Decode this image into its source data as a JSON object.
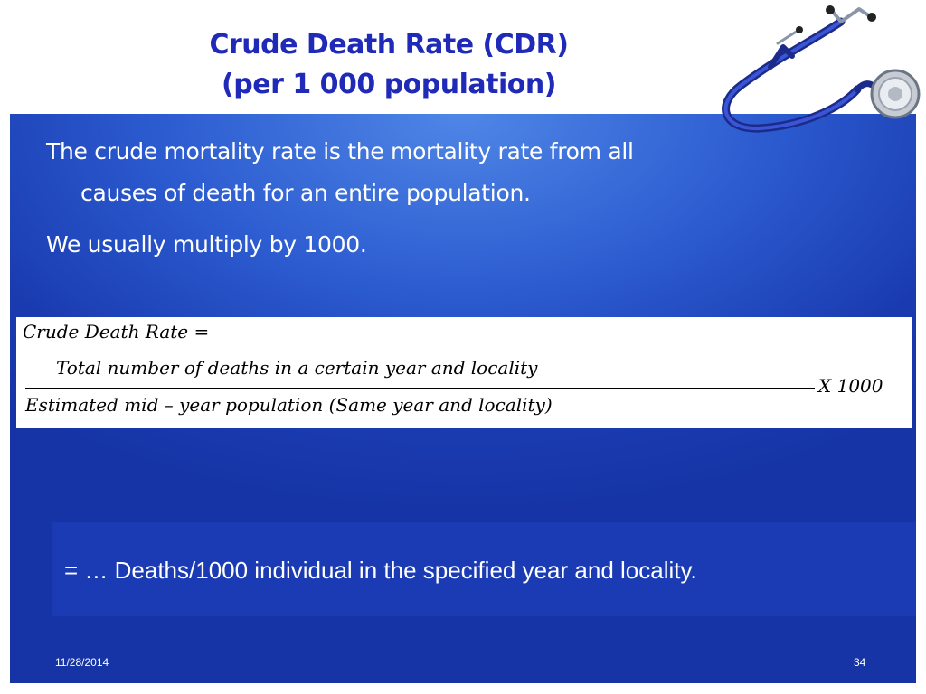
{
  "slide": {
    "title_line1": "Crude Death Rate (CDR)",
    "title_line2": "(per 1 000 population)",
    "bullets": {
      "b1_line1": "The crude mortality rate is the mortality rate from all",
      "b1_line2": "causes of death for an entire population.",
      "b2": "We usually multiply by 1000."
    },
    "formula": {
      "lhs": "Crude  Death  Rate =",
      "numerator": "Total  number  of  deaths  in  a  certain  year  and  locality",
      "denominator": "Estimated  mid – year  population  (Same  year  and  locality)",
      "multiplier": "X  1000"
    },
    "result": "= … Deaths/1000 individual in the specified year and locality.",
    "footer": {
      "date": "11/28/2014",
      "page_number": "34"
    },
    "colors": {
      "title": "#1f2bb8",
      "panel": "#2c5bd0",
      "text": "#ffffff"
    },
    "decoration_icon": "stethoscope-icon"
  }
}
